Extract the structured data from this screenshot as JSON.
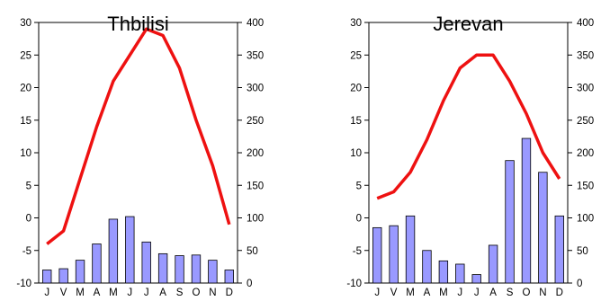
{
  "chart_data": [
    {
      "type": "bar+line",
      "title": "Thbilisi",
      "categories": [
        "J",
        "V",
        "M",
        "A",
        "M",
        "J",
        "J",
        "A",
        "S",
        "O",
        "N",
        "D"
      ],
      "y_left_ticks": [
        "30",
        "25",
        "20",
        "15",
        "10",
        "5",
        "0",
        "-5",
        "-10"
      ],
      "y_right_ticks": [
        "400",
        "350",
        "300",
        "250",
        "200",
        "150",
        "100",
        "50",
        "0"
      ],
      "ylim_left": [
        -10,
        30
      ],
      "ylim_right": [
        0,
        400
      ],
      "series": [
        {
          "type": "line",
          "axis": "left",
          "color": "#ee1111",
          "values": [
            -4,
            -2,
            6,
            14,
            21,
            25,
            29,
            28,
            23,
            15,
            8,
            -1
          ]
        },
        {
          "type": "bar",
          "axis": "right",
          "color": "#9999ff",
          "values": [
            20,
            22,
            35,
            60,
            98,
            102,
            63,
            45,
            42,
            43,
            35,
            20
          ]
        }
      ]
    },
    {
      "type": "bar+line",
      "title": "Jerevan",
      "categories": [
        "J",
        "V",
        "M",
        "A",
        "M",
        "J",
        "J",
        "A",
        "S",
        "O",
        "N",
        "D"
      ],
      "y_left_ticks": [
        "30",
        "25",
        "20",
        "15",
        "10",
        "5",
        "0",
        "-5",
        "-10"
      ],
      "y_right_ticks": [
        "400",
        "350",
        "300",
        "250",
        "200",
        "150",
        "100",
        "50",
        "0"
      ],
      "ylim_left": [
        -10,
        30
      ],
      "ylim_right": [
        0,
        400
      ],
      "series": [
        {
          "type": "line",
          "axis": "left",
          "color": "#ee1111",
          "values": [
            3,
            4,
            7,
            12,
            18,
            23,
            25,
            25,
            21,
            16,
            10,
            6
          ]
        },
        {
          "type": "bar",
          "axis": "right",
          "color": "#9999ff",
          "values": [
            85,
            88,
            103,
            50,
            34,
            29,
            13,
            58,
            188,
            222,
            170,
            103
          ]
        }
      ]
    }
  ]
}
